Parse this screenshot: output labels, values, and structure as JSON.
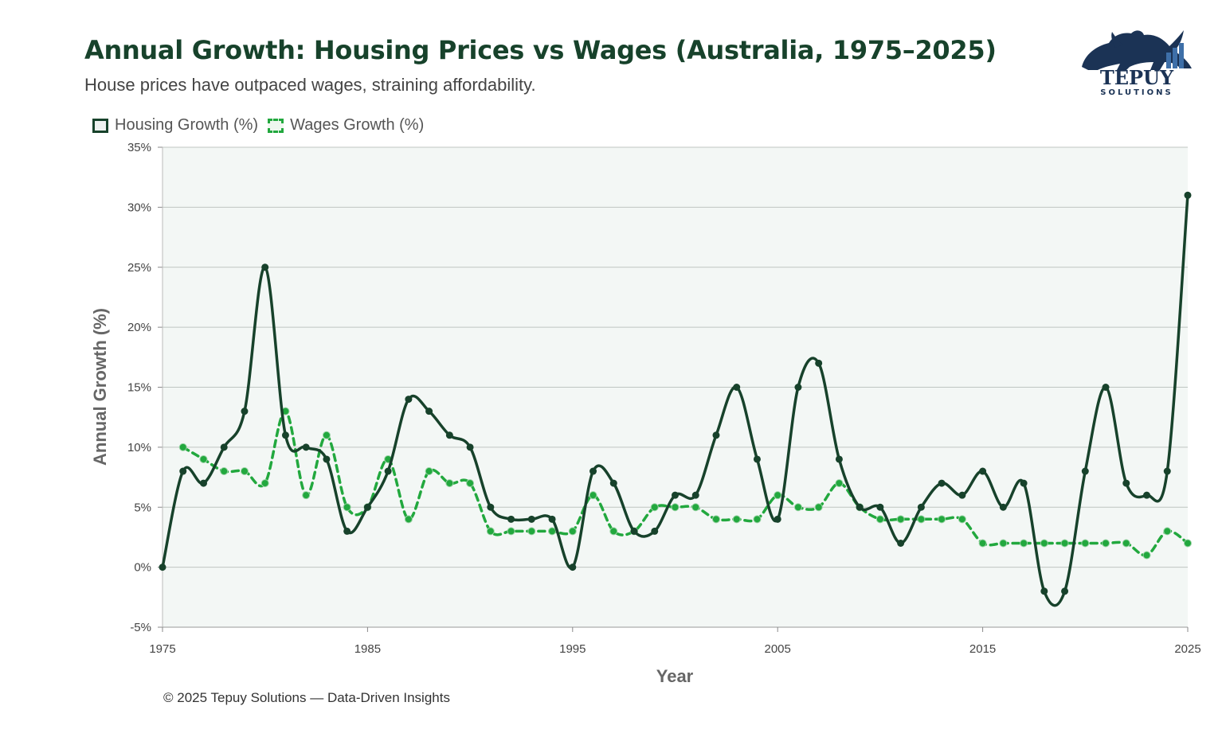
{
  "header": {
    "title": "Annual Growth: Housing Prices vs Wages (Australia, 1975–2025)",
    "subtitle": "House prices have outpaced wages, straining affordability."
  },
  "logo": {
    "name": "TEPUY",
    "tagline": "SOLUTIONS"
  },
  "footer": {
    "text": "© 2025 Tepuy Solutions — Data-Driven Insights"
  },
  "colors": {
    "housing": "#17422b",
    "wages": "#22a83e",
    "plot_bg": "#f3f7f5",
    "grid": "#bfc5c2",
    "title": "#17422b"
  },
  "chart_data": {
    "type": "line",
    "title": "Annual Growth: Housing Prices vs Wages (Australia, 1975–2025)",
    "xlabel": "Year",
    "ylabel": "Annual Growth (%)",
    "xlim": [
      1975,
      2025
    ],
    "ylim": [
      -5,
      35
    ],
    "x_ticks": [
      1975,
      1985,
      1995,
      2005,
      2015,
      2025
    ],
    "y_ticks": [
      -5,
      0,
      5,
      10,
      15,
      20,
      25,
      30,
      35
    ],
    "y_tick_labels": [
      "-5%",
      "0%",
      "5%",
      "10%",
      "15%",
      "20%",
      "25%",
      "30%",
      "35%"
    ],
    "grid": true,
    "legend": "top-left",
    "series": [
      {
        "name": "Housing Growth (%)",
        "x": [
          1975,
          1976,
          1977,
          1978,
          1979,
          1980,
          1981,
          1982,
          1983,
          1984,
          1985,
          1986,
          1987,
          1988,
          1989,
          1990,
          1991,
          1992,
          1993,
          1994,
          1995,
          1996,
          1997,
          1998,
          1999,
          2000,
          2001,
          2002,
          2003,
          2004,
          2005,
          2006,
          2007,
          2008,
          2009,
          2010,
          2011,
          2012,
          2013,
          2014,
          2015,
          2016,
          2017,
          2018,
          2019,
          2020,
          2021,
          2022,
          2023,
          2024,
          2025
        ],
        "values": [
          0,
          8,
          7,
          10,
          13,
          25,
          11,
          10,
          9,
          3,
          5,
          8,
          14,
          13,
          11,
          10,
          5,
          4,
          4,
          4,
          0,
          8,
          7,
          3,
          3,
          6,
          6,
          11,
          15,
          9,
          4,
          15,
          17,
          9,
          5,
          5,
          2,
          5,
          7,
          6,
          8,
          5,
          7,
          -2,
          -2,
          8,
          15,
          7,
          6,
          8,
          31
        ]
      },
      {
        "name": "Wages Growth (%)",
        "x": [
          1976,
          1977,
          1978,
          1979,
          1980,
          1981,
          1982,
          1983,
          1984,
          1985,
          1986,
          1987,
          1988,
          1989,
          1990,
          1991,
          1992,
          1993,
          1994,
          1995,
          1996,
          1997,
          1998,
          1999,
          2000,
          2001,
          2002,
          2003,
          2004,
          2005,
          2006,
          2007,
          2008,
          2009,
          2010,
          2011,
          2012,
          2013,
          2014,
          2015,
          2016,
          2017,
          2018,
          2019,
          2020,
          2021,
          2022,
          2023,
          2024,
          2025
        ],
        "values": [
          10,
          9,
          8,
          8,
          7,
          13,
          6,
          11,
          5,
          5,
          9,
          4,
          8,
          7,
          7,
          3,
          3,
          3,
          3,
          3,
          6,
          3,
          3,
          5,
          5,
          5,
          4,
          4,
          4,
          6,
          5,
          5,
          7,
          5,
          4,
          4,
          4,
          4,
          4,
          2,
          2,
          2,
          2,
          2,
          2,
          2,
          2,
          1,
          3,
          2
        ]
      }
    ]
  }
}
